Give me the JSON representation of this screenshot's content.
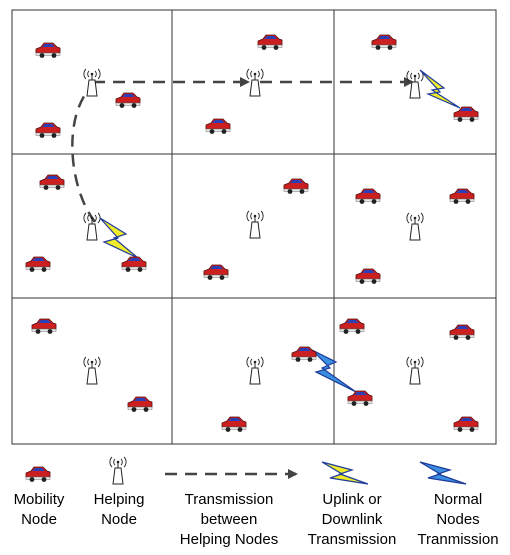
{
  "legend": {
    "mobility_node": "Mobility\nNode",
    "helping_node": "Helping\nNode",
    "transmission_between": "Transmission\nbetween\nHelping Nodes",
    "uplink_downlink": "Uplink or\nDownlink\nTransmission",
    "normal_nodes": "Normal\nNodes\nTranmission"
  },
  "grid": {
    "rows": 3,
    "cols": 3
  },
  "colors": {
    "car_body": "#cc1f1f",
    "car_window": "#2a3fb8",
    "grid_line": "#333333",
    "dashed_path": "#444444",
    "bolt_yellow": "#f0ec2a",
    "bolt_blue": "#3a8fe0",
    "bolt_outline": "#1e3a9a"
  },
  "icons": {
    "mobility_node": "car-icon",
    "helping_node": "antenna-icon",
    "uplink": "yellow-lightning-icon",
    "normal": "blue-lightning-icon",
    "path": "dashed-arrow-icon"
  }
}
